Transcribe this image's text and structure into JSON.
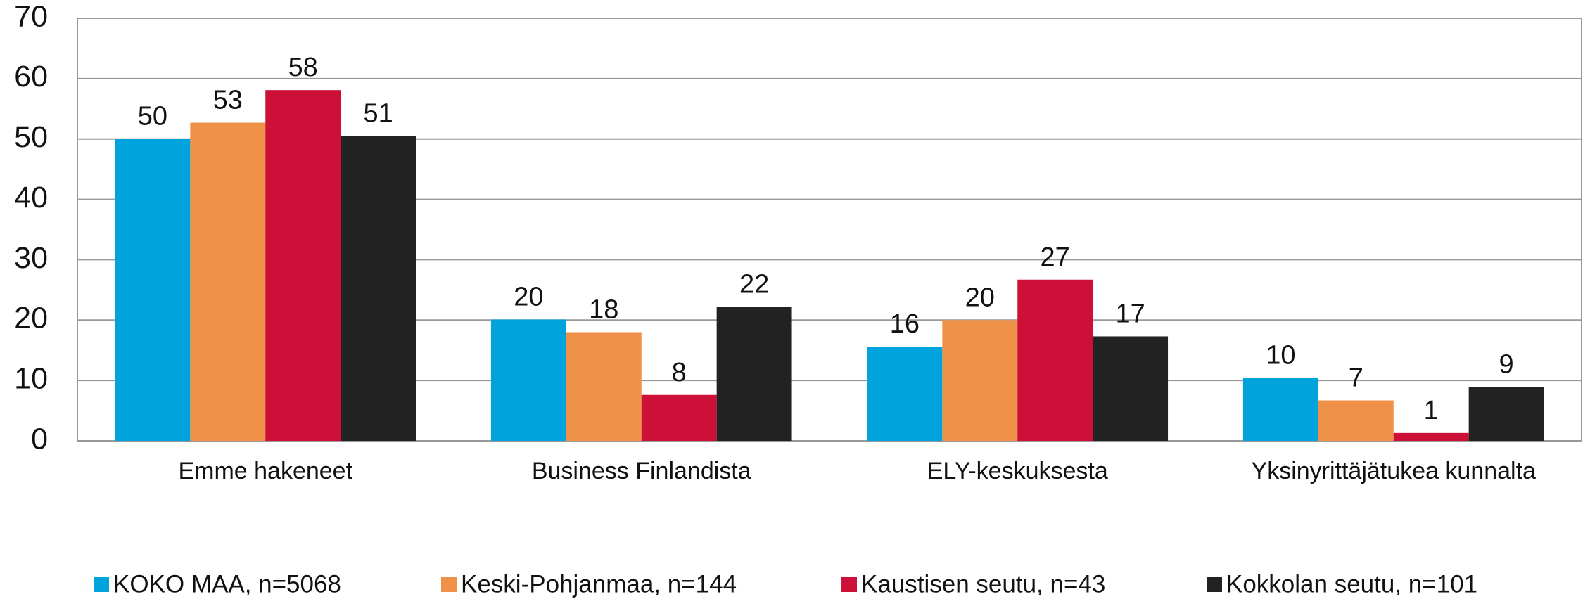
{
  "chart_data": {
    "type": "bar",
    "categories": [
      "Emme hakeneet",
      "Business Finlandista",
      "ELY-keskuksesta",
      "Yksinyrittäjätukea kunnalta"
    ],
    "series": [
      {
        "name": "KOKO MAA, n=5068",
        "color": "#00a3dc",
        "values": [
          50.0,
          20.1,
          15.6,
          10.4
        ],
        "value_labels": [
          "50",
          "20",
          "16",
          "10"
        ]
      },
      {
        "name": "Keski-Pohjanmaa, n=144",
        "color": "#f0914a",
        "values": [
          52.7,
          18.0,
          20.0,
          6.7
        ],
        "value_labels": [
          "53",
          "18",
          "20",
          "7"
        ]
      },
      {
        "name": "Kaustisen seutu, n=43",
        "color": "#cc1037",
        "values": [
          58.1,
          7.6,
          26.7,
          1.3
        ],
        "value_labels": [
          "58",
          "8",
          "27",
          "1"
        ]
      },
      {
        "name": "Kokkolan seutu, n=101",
        "color": "#222222",
        "values": [
          50.5,
          22.2,
          17.3,
          8.9
        ],
        "value_labels": [
          "51",
          "22",
          "17",
          "9"
        ]
      }
    ],
    "ylim": [
      0,
      70
    ],
    "yticks": [
      0,
      10,
      20,
      30,
      40,
      50,
      60,
      70
    ],
    "grid": true,
    "legend": "bottom"
  }
}
